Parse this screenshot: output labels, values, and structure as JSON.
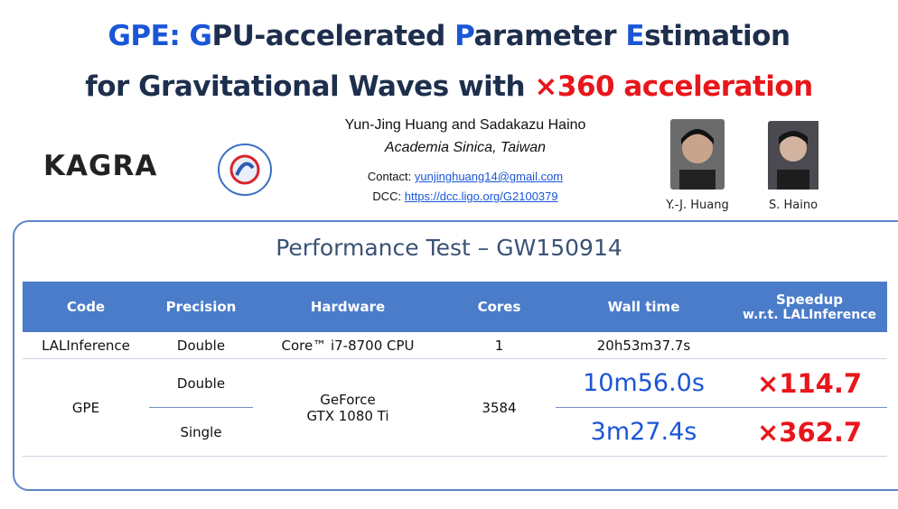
{
  "header": {
    "title_line1": [
      "GPE: ",
      "G",
      "PU-accelerated ",
      "P",
      "arameter ",
      "E",
      "stimation"
    ],
    "title_line2": [
      "for Gravitational Waves with ",
      "×360 acceleration"
    ],
    "logo": "KAGRA",
    "authors": "Yun-Jing Huang and Sadakazu Haino",
    "affiliation": "Academia Sinica, Taiwan",
    "contact_label": "Contact:",
    "contact_email": "yunjinghuang14@gmail.com",
    "dcc_label": "DCC:",
    "dcc_url": "https://dcc.ligo.org/G2100379",
    "photo_captions": [
      "Y.-J. Huang",
      "S. Haino"
    ]
  },
  "section": {
    "title": "Performance Test – GW150914"
  },
  "table": {
    "columns": [
      "Code",
      "Precision",
      "Hardware",
      "Cores",
      "Wall time",
      [
        "Speedup",
        "w.r.t. LALInference"
      ]
    ],
    "rows": [
      [
        "LALInference",
        "Double",
        "Core™ i7-8700 CPU",
        "1",
        "20h53m37.7s"
      ],
      [
        "GPE",
        "Double",
        [
          "GeForce",
          "GTX 1080 Ti"
        ],
        "3584",
        "10m56.0s",
        "×114.7"
      ],
      [
        "Single",
        "3m27.4s",
        "×362.7"
      ]
    ]
  }
}
